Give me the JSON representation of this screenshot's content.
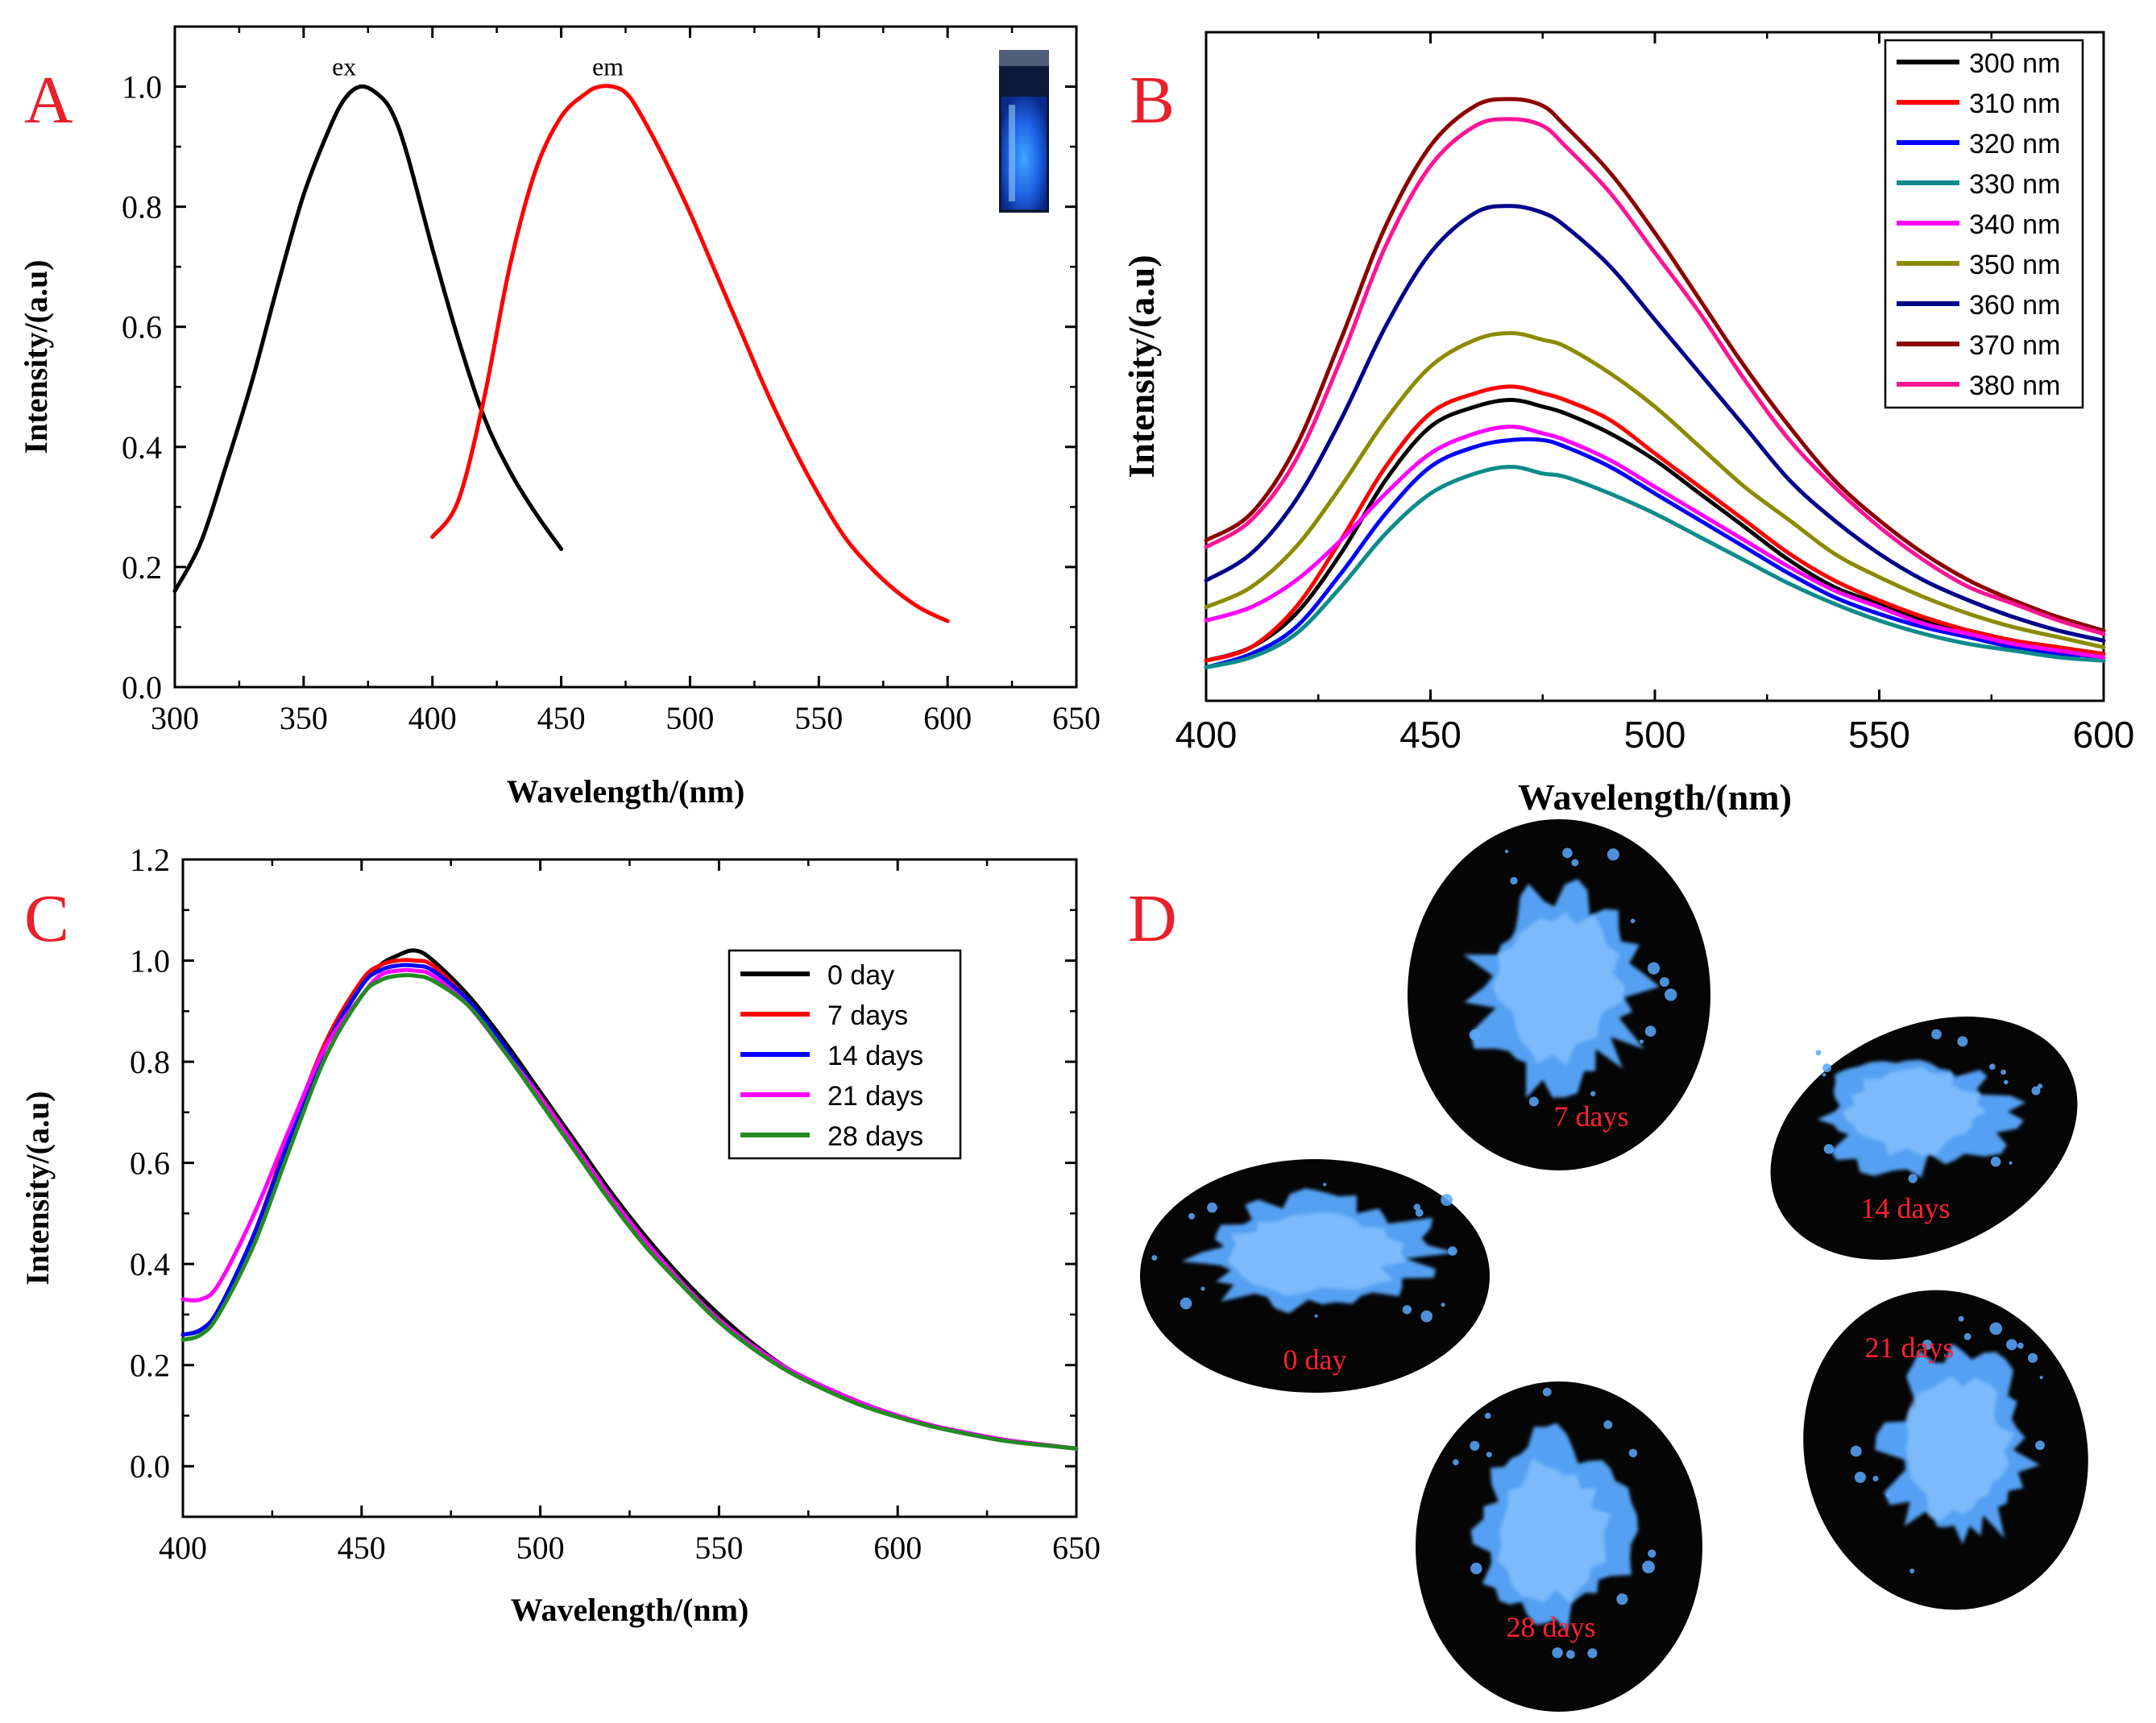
{
  "figure": {
    "panels": [
      "A",
      "B",
      "C",
      "D"
    ],
    "panel_letter_color": "#e8202a"
  },
  "chart_data": [
    {
      "panel": "A",
      "type": "line",
      "title": "",
      "xlabel": "Wavelength/(nm)",
      "ylabel": "Intensity/(a.u)",
      "xlim": [
        300,
        650
      ],
      "ylim": [
        0.0,
        1.1
      ],
      "xticks": [
        300,
        350,
        400,
        450,
        500,
        550,
        600,
        650
      ],
      "xtick_labels": [
        "300",
        "350",
        "400",
        "450",
        "500",
        "550",
        "600",
        "650"
      ],
      "yticks": [
        0.0,
        0.2,
        0.4,
        0.6,
        0.8,
        1.0
      ],
      "ytick_labels": [
        "0.0",
        "0.2",
        "0.4",
        "0.6",
        "0.8",
        "1.0"
      ],
      "inset": "vial glowing blue under UV light",
      "series": [
        {
          "name": "ex",
          "label": "ex",
          "color": "#000000",
          "x": [
            300,
            310,
            320,
            330,
            340,
            350,
            360,
            366,
            372,
            378,
            384,
            390,
            400,
            410,
            420,
            430,
            440,
            450
          ],
          "y": [
            0.16,
            0.24,
            0.37,
            0.51,
            0.67,
            0.82,
            0.93,
            0.98,
            1.0,
            0.99,
            0.96,
            0.89,
            0.73,
            0.58,
            0.45,
            0.36,
            0.29,
            0.23
          ]
        },
        {
          "name": "em",
          "label": "em",
          "color": "#ff0000",
          "x": [
            400,
            410,
            420,
            430,
            440,
            450,
            460,
            465,
            470,
            475,
            480,
            490,
            500,
            510,
            520,
            530,
            540,
            550,
            560,
            570,
            580,
            590,
            600
          ],
          "y": [
            0.25,
            0.31,
            0.48,
            0.7,
            0.86,
            0.95,
            0.99,
            1.0,
            1.0,
            0.99,
            0.96,
            0.88,
            0.79,
            0.69,
            0.59,
            0.49,
            0.4,
            0.32,
            0.25,
            0.2,
            0.16,
            0.13,
            0.11
          ]
        }
      ]
    },
    {
      "panel": "B",
      "type": "line",
      "title": "",
      "xlabel": "Wavelength/(nm)",
      "ylabel": "Intensity/(a.u)",
      "xlim": [
        400,
        600
      ],
      "ylim": [
        0,
        1
      ],
      "xticks": [
        400,
        450,
        500,
        550,
        600
      ],
      "xtick_labels": [
        "400",
        "450",
        "500",
        "550",
        "600"
      ],
      "legend_position": "top-right",
      "x": [
        400,
        410,
        420,
        430,
        440,
        450,
        460,
        468,
        475,
        480,
        490,
        500,
        510,
        520,
        530,
        540,
        550,
        560,
        570,
        580,
        590,
        600
      ],
      "series": [
        {
          "name": "300 nm",
          "color": "#000000",
          "values": [
            0.06,
            0.08,
            0.13,
            0.22,
            0.33,
            0.41,
            0.44,
            0.45,
            0.44,
            0.43,
            0.4,
            0.36,
            0.31,
            0.26,
            0.21,
            0.17,
            0.145,
            0.12,
            0.105,
            0.09,
            0.08,
            0.07
          ]
        },
        {
          "name": "310 nm",
          "color": "#ff0000",
          "values": [
            0.06,
            0.08,
            0.14,
            0.24,
            0.35,
            0.43,
            0.46,
            0.47,
            0.46,
            0.45,
            0.42,
            0.37,
            0.32,
            0.27,
            0.22,
            0.18,
            0.15,
            0.125,
            0.105,
            0.09,
            0.08,
            0.07
          ]
        },
        {
          "name": "320 nm",
          "color": "#0000ff",
          "values": [
            0.05,
            0.07,
            0.11,
            0.19,
            0.28,
            0.35,
            0.38,
            0.39,
            0.39,
            0.38,
            0.35,
            0.31,
            0.27,
            0.23,
            0.19,
            0.155,
            0.13,
            0.11,
            0.095,
            0.08,
            0.07,
            0.06
          ]
        },
        {
          "name": "330 nm",
          "color": "#0e8b8b",
          "values": [
            0.05,
            0.065,
            0.1,
            0.17,
            0.25,
            0.31,
            0.34,
            0.35,
            0.34,
            0.335,
            0.31,
            0.28,
            0.245,
            0.21,
            0.175,
            0.145,
            0.12,
            0.1,
            0.085,
            0.075,
            0.065,
            0.06
          ]
        },
        {
          "name": "340 nm",
          "color": "#ff00ff",
          "values": [
            0.12,
            0.14,
            0.18,
            0.24,
            0.31,
            0.37,
            0.4,
            0.41,
            0.4,
            0.39,
            0.36,
            0.32,
            0.28,
            0.24,
            0.2,
            0.165,
            0.14,
            0.115,
            0.1,
            0.085,
            0.075,
            0.065
          ]
        },
        {
          "name": "350 nm",
          "color": "#8b8b00",
          "values": [
            0.14,
            0.17,
            0.23,
            0.32,
            0.42,
            0.5,
            0.54,
            0.55,
            0.54,
            0.53,
            0.49,
            0.44,
            0.38,
            0.32,
            0.27,
            0.22,
            0.185,
            0.155,
            0.13,
            0.11,
            0.095,
            0.08
          ]
        },
        {
          "name": "360 nm",
          "color": "#00008b",
          "values": [
            0.18,
            0.22,
            0.3,
            0.42,
            0.56,
            0.67,
            0.73,
            0.74,
            0.73,
            0.71,
            0.65,
            0.57,
            0.49,
            0.41,
            0.33,
            0.27,
            0.22,
            0.18,
            0.15,
            0.125,
            0.105,
            0.09
          ]
        },
        {
          "name": "370 nm",
          "color": "#8b0000",
          "values": [
            0.24,
            0.28,
            0.38,
            0.54,
            0.71,
            0.83,
            0.89,
            0.9,
            0.89,
            0.86,
            0.79,
            0.7,
            0.6,
            0.5,
            0.41,
            0.33,
            0.27,
            0.22,
            0.18,
            0.15,
            0.125,
            0.105
          ]
        },
        {
          "name": "380 nm",
          "color": "#ff1493",
          "values": [
            0.23,
            0.27,
            0.36,
            0.51,
            0.68,
            0.8,
            0.86,
            0.87,
            0.86,
            0.83,
            0.76,
            0.67,
            0.58,
            0.48,
            0.39,
            0.32,
            0.26,
            0.21,
            0.17,
            0.145,
            0.12,
            0.1
          ]
        }
      ]
    },
    {
      "panel": "C",
      "type": "line",
      "title": "",
      "xlabel": "Wavelength/(nm)",
      "ylabel": "Intensity/(a.u)",
      "xlim": [
        400,
        650
      ],
      "ylim": [
        -0.1,
        1.2
      ],
      "xticks": [
        400,
        450,
        500,
        550,
        600,
        650
      ],
      "xtick_labels": [
        "400",
        "450",
        "500",
        "550",
        "600",
        "650"
      ],
      "yticks": [
        0.0,
        0.2,
        0.4,
        0.6,
        0.8,
        1.0,
        1.2
      ],
      "ytick_labels": [
        "0.0",
        "0.2",
        "0.4",
        "0.6",
        "0.8",
        "1.0",
        "1.2"
      ],
      "legend_position": "center-right",
      "x": [
        400,
        405,
        410,
        420,
        430,
        440,
        450,
        455,
        460,
        465,
        470,
        480,
        490,
        500,
        510,
        520,
        530,
        540,
        550,
        560,
        570,
        580,
        590,
        600,
        610,
        620,
        630,
        640,
        650
      ],
      "series": [
        {
          "name": "0   day",
          "color": "#000000",
          "values": [
            0.26,
            0.27,
            0.31,
            0.46,
            0.65,
            0.83,
            0.95,
            0.99,
            1.01,
            1.02,
            1.0,
            0.93,
            0.84,
            0.74,
            0.64,
            0.54,
            0.45,
            0.37,
            0.3,
            0.24,
            0.19,
            0.155,
            0.125,
            0.1,
            0.08,
            0.065,
            0.052,
            0.043,
            0.035
          ]
        },
        {
          "name": "7   days",
          "color": "#ff0000",
          "values": [
            0.26,
            0.27,
            0.31,
            0.46,
            0.66,
            0.84,
            0.96,
            0.99,
            1.0,
            1.0,
            0.99,
            0.92,
            0.83,
            0.73,
            0.63,
            0.53,
            0.44,
            0.36,
            0.29,
            0.235,
            0.19,
            0.155,
            0.125,
            0.1,
            0.08,
            0.065,
            0.052,
            0.043,
            0.035
          ]
        },
        {
          "name": "14 days",
          "color": "#0000ff",
          "values": [
            0.26,
            0.27,
            0.31,
            0.46,
            0.65,
            0.83,
            0.95,
            0.98,
            0.99,
            0.99,
            0.98,
            0.92,
            0.83,
            0.73,
            0.63,
            0.53,
            0.44,
            0.36,
            0.29,
            0.235,
            0.19,
            0.155,
            0.125,
            0.1,
            0.08,
            0.065,
            0.052,
            0.043,
            0.035
          ]
        },
        {
          "name": "21 days",
          "color": "#ff00ff",
          "values": [
            0.33,
            0.33,
            0.36,
            0.5,
            0.67,
            0.83,
            0.93,
            0.97,
            0.98,
            0.98,
            0.97,
            0.91,
            0.82,
            0.73,
            0.63,
            0.53,
            0.44,
            0.36,
            0.29,
            0.235,
            0.19,
            0.155,
            0.125,
            0.1,
            0.08,
            0.065,
            0.052,
            0.043,
            0.035
          ]
        },
        {
          "name": "28 days",
          "color": "#228b22",
          "values": [
            0.25,
            0.26,
            0.3,
            0.44,
            0.63,
            0.81,
            0.93,
            0.96,
            0.97,
            0.97,
            0.96,
            0.91,
            0.82,
            0.72,
            0.62,
            0.52,
            0.43,
            0.355,
            0.285,
            0.23,
            0.185,
            0.15,
            0.12,
            0.097,
            0.078,
            0.063,
            0.05,
            0.042,
            0.035
          ]
        }
      ]
    },
    {
      "panel": "D",
      "type": "image",
      "samples": [
        {
          "label": "0 day"
        },
        {
          "label": "7 days"
        },
        {
          "label": "14 days"
        },
        {
          "label": "21 days"
        },
        {
          "label": "28 days"
        }
      ],
      "powder_color": "#5aa9ff",
      "label_color": "#ff2030"
    }
  ]
}
